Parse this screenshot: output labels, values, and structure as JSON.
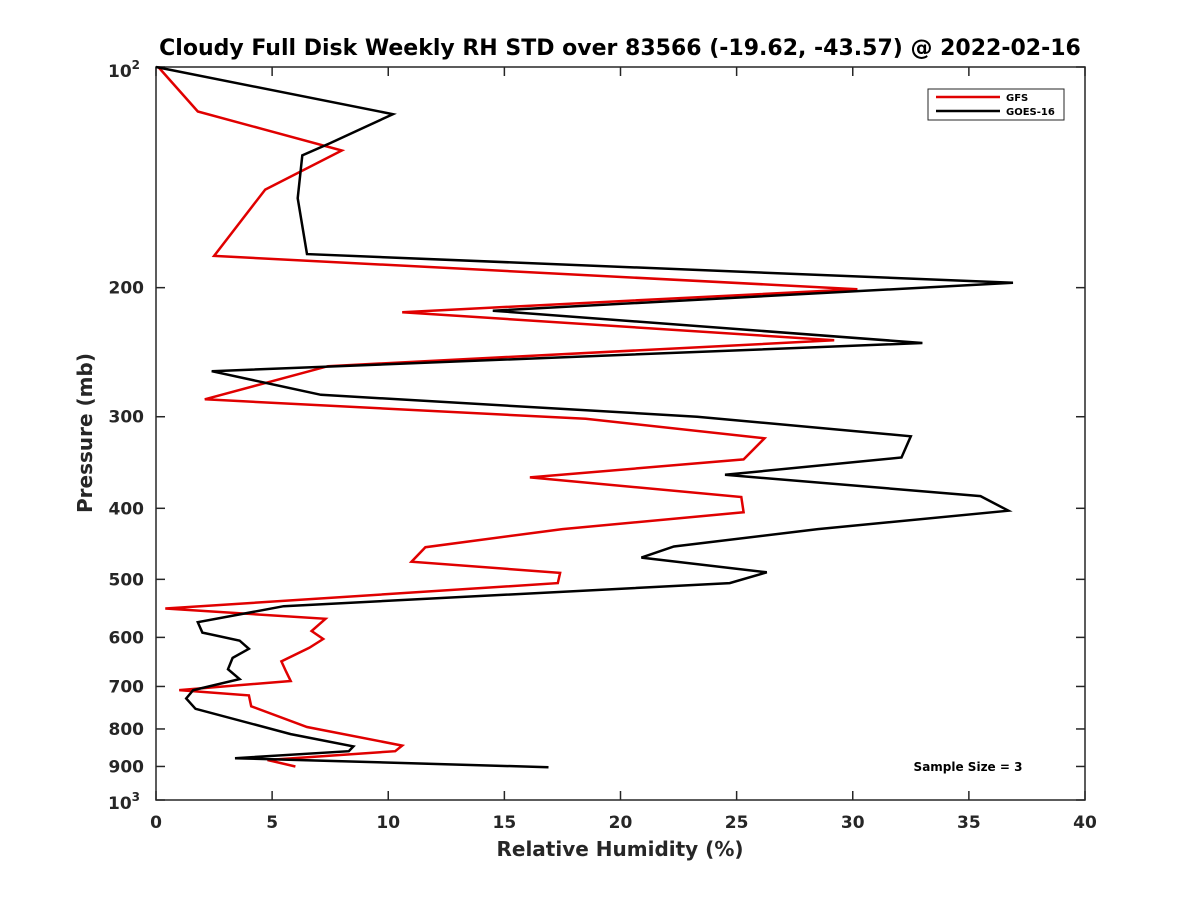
{
  "chart_data": {
    "type": "line",
    "title": "Cloudy Full Disk Weekly RH STD over 83566 (-19.62, -43.57) @ 2022-02-16",
    "xlabel": "Relative Humidity (%)",
    "ylabel": "Pressure (mb)",
    "xlim": [
      0,
      40
    ],
    "ylim": [
      100,
      1000
    ],
    "y_scale": "log",
    "y_reversed": true,
    "grid": false,
    "legend_placement": "top-right",
    "x_ticks": [
      0,
      5,
      10,
      15,
      20,
      25,
      30,
      35,
      40
    ],
    "x_tick_labels": [
      "0",
      "5",
      "10",
      "15",
      "20",
      "25",
      "30",
      "35",
      "40"
    ],
    "y_ticks": [
      200,
      300,
      400,
      500,
      600,
      700,
      800,
      900
    ],
    "y_tick_labels": [
      "200",
      "300",
      "400",
      "500",
      "600",
      "700",
      "800",
      "900"
    ],
    "y_end_labels": {
      "top": {
        "base": "10",
        "exp": "2",
        "value": 100
      },
      "bottom": {
        "base": "10",
        "exp": "3",
        "value": 1000
      }
    },
    "annotation": "Sample Size = 3",
    "series": [
      {
        "name": "GFS",
        "color": "#e00000",
        "points": [
          {
            "x": 0.1,
            "y": 100
          },
          {
            "x": 1.8,
            "y": 115
          },
          {
            "x": 8.0,
            "y": 130
          },
          {
            "x": 4.7,
            "y": 147
          },
          {
            "x": 2.5,
            "y": 181
          },
          {
            "x": 30.2,
            "y": 201
          },
          {
            "x": 10.6,
            "y": 216
          },
          {
            "x": 29.2,
            "y": 236
          },
          {
            "x": 7.4,
            "y": 256
          },
          {
            "x": 2.1,
            "y": 284
          },
          {
            "x": 18.5,
            "y": 302
          },
          {
            "x": 26.2,
            "y": 321
          },
          {
            "x": 25.3,
            "y": 343
          },
          {
            "x": 16.1,
            "y": 363
          },
          {
            "x": 25.2,
            "y": 386
          },
          {
            "x": 25.3,
            "y": 405
          },
          {
            "x": 17.5,
            "y": 427
          },
          {
            "x": 11.6,
            "y": 452
          },
          {
            "x": 11.0,
            "y": 473
          },
          {
            "x": 17.4,
            "y": 490
          },
          {
            "x": 17.3,
            "y": 506
          },
          {
            "x": 0.4,
            "y": 548
          },
          {
            "x": 7.3,
            "y": 566
          },
          {
            "x": 6.7,
            "y": 588
          },
          {
            "x": 7.2,
            "y": 603
          },
          {
            "x": 6.6,
            "y": 620
          },
          {
            "x": 5.4,
            "y": 647
          },
          {
            "x": 5.6,
            "y": 668
          },
          {
            "x": 5.8,
            "y": 688
          },
          {
            "x": 1.0,
            "y": 708
          },
          {
            "x": 4.0,
            "y": 720
          },
          {
            "x": 4.1,
            "y": 745
          },
          {
            "x": 6.5,
            "y": 795
          },
          {
            "x": 10.6,
            "y": 843
          },
          {
            "x": 10.3,
            "y": 858
          },
          {
            "x": 4.8,
            "y": 882
          },
          {
            "x": 6.0,
            "y": 900
          }
        ]
      },
      {
        "name": "GOES-16",
        "color": "#000000",
        "points": [
          {
            "x": 0.0,
            "y": 100
          },
          {
            "x": 10.2,
            "y": 116
          },
          {
            "x": 7.5,
            "y": 127
          },
          {
            "x": 6.3,
            "y": 132
          },
          {
            "x": 6.1,
            "y": 151
          },
          {
            "x": 6.5,
            "y": 180
          },
          {
            "x": 36.9,
            "y": 197
          },
          {
            "x": 14.5,
            "y": 215
          },
          {
            "x": 33.0,
            "y": 238
          },
          {
            "x": 2.4,
            "y": 260
          },
          {
            "x": 7.1,
            "y": 280
          },
          {
            "x": 23.3,
            "y": 300
          },
          {
            "x": 32.5,
            "y": 319
          },
          {
            "x": 32.1,
            "y": 341
          },
          {
            "x": 24.5,
            "y": 360
          },
          {
            "x": 35.5,
            "y": 385
          },
          {
            "x": 36.7,
            "y": 403
          },
          {
            "x": 28.5,
            "y": 427
          },
          {
            "x": 22.3,
            "y": 451
          },
          {
            "x": 20.9,
            "y": 467
          },
          {
            "x": 26.3,
            "y": 489
          },
          {
            "x": 24.7,
            "y": 506
          },
          {
            "x": 5.5,
            "y": 544
          },
          {
            "x": 1.8,
            "y": 572
          },
          {
            "x": 2.0,
            "y": 591
          },
          {
            "x": 3.6,
            "y": 606
          },
          {
            "x": 4.0,
            "y": 622
          },
          {
            "x": 3.3,
            "y": 640
          },
          {
            "x": 3.1,
            "y": 663
          },
          {
            "x": 3.6,
            "y": 684
          },
          {
            "x": 1.6,
            "y": 708
          },
          {
            "x": 1.3,
            "y": 727
          },
          {
            "x": 1.7,
            "y": 751
          },
          {
            "x": 5.8,
            "y": 813
          },
          {
            "x": 8.5,
            "y": 845
          },
          {
            "x": 8.3,
            "y": 858
          },
          {
            "x": 3.4,
            "y": 877
          },
          {
            "x": 16.9,
            "y": 902
          }
        ]
      }
    ]
  }
}
